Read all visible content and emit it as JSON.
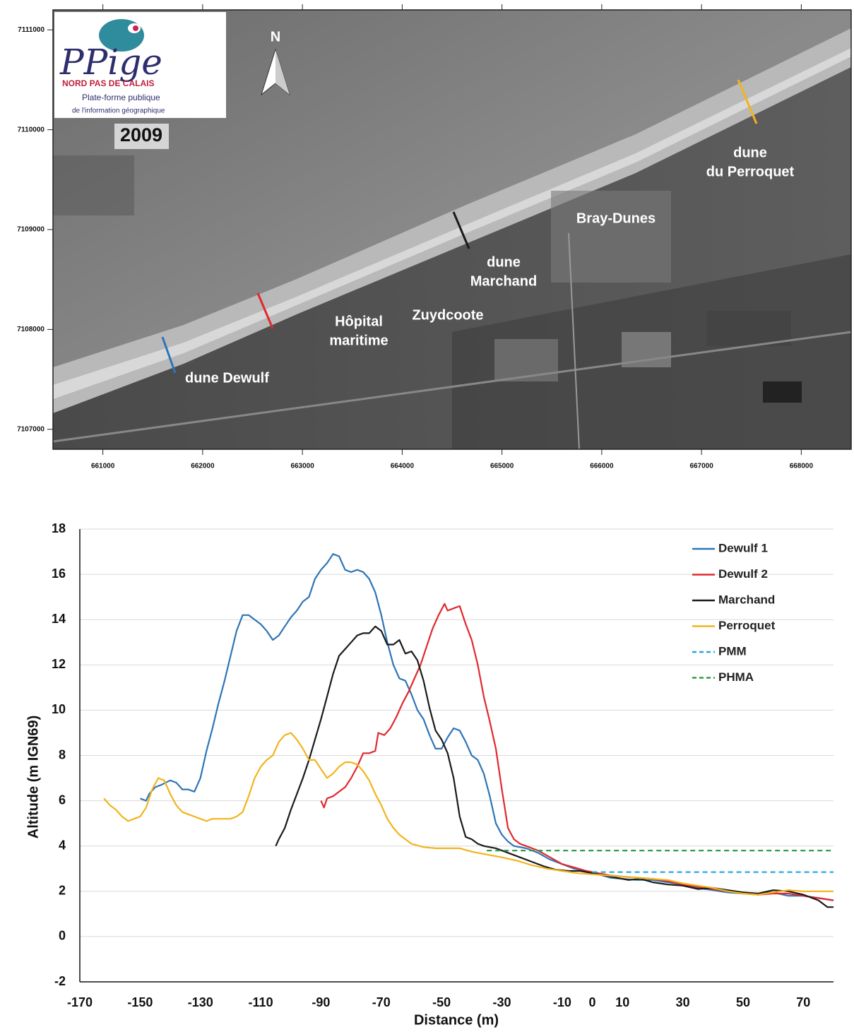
{
  "chart_data": [
    {
      "type": "map",
      "xlim": [
        660500,
        668500
      ],
      "ylim": [
        7106800,
        7111200
      ],
      "xticks": [
        661000,
        662000,
        663000,
        664000,
        665000,
        666000,
        667000,
        668000
      ],
      "yticks": [
        7107000,
        7108000,
        7109000,
        7110000,
        7111000
      ],
      "north": "N",
      "logo": {
        "title": "PPige",
        "region": "NORD PAS DE CALAIS",
        "line1": "Plate-forme publique",
        "line2": "de l'information géographique",
        "year": "2009"
      },
      "annotations": [
        [
          "dune Dewulf"
        ],
        [
          "Hôpital",
          "maritime"
        ],
        [
          "Zuydcoote"
        ],
        [
          "dune",
          "Marchand"
        ],
        [
          "Bray-Dunes"
        ],
        [
          "dune",
          "du Perroquet"
        ]
      ]
    },
    {
      "type": "line",
      "xlabel": "Distance (m)",
      "ylabel": "Altitude (m IGN69)",
      "xlim": [
        -170,
        80
      ],
      "ylim": [
        -2,
        18
      ],
      "xticks": [
        -170,
        -150,
        -130,
        -110,
        -90,
        -70,
        -50,
        -30,
        -10,
        0,
        10,
        30,
        50,
        70
      ],
      "yticks": [
        -2,
        0,
        2,
        4,
        6,
        8,
        10,
        12,
        14,
        16,
        18
      ],
      "grid": true,
      "legend": "upper right",
      "series": [
        {
          "name": "Dewulf 1",
          "color": "#2e75b6",
          "x": [
            -150,
            -148,
            -147,
            -145,
            -143,
            -140,
            -138,
            -136,
            -134,
            -132,
            -130,
            -128,
            -126,
            -124,
            -122,
            -120,
            -118,
            -116,
            -114,
            -112,
            -110,
            -108,
            -106,
            -104,
            -102,
            -100,
            -98,
            -96,
            -94,
            -92,
            -90,
            -88,
            -86,
            -84,
            -82,
            -80,
            -78,
            -76,
            -74,
            -72,
            -70,
            -68,
            -66,
            -64,
            -62,
            -60,
            -58,
            -56,
            -54,
            -52,
            -50,
            -48,
            -46,
            -44,
            -42,
            -40,
            -38,
            -36,
            -34,
            -32,
            -30,
            -28,
            -26,
            -22,
            -18,
            -14,
            -10,
            -6,
            -2,
            2,
            6,
            10,
            15,
            20,
            25,
            30,
            35,
            40,
            45,
            50,
            55,
            60,
            65,
            70,
            75,
            80
          ],
          "values": [
            6.1,
            6.0,
            6.3,
            6.6,
            6.7,
            6.9,
            6.8,
            6.5,
            6.5,
            6.4,
            7.0,
            8.2,
            9.2,
            10.3,
            11.3,
            12.4,
            13.5,
            14.2,
            14.2,
            14.0,
            13.8,
            13.5,
            13.1,
            13.3,
            13.7,
            14.1,
            14.4,
            14.8,
            15.0,
            15.8,
            16.2,
            16.5,
            16.9,
            16.8,
            16.2,
            16.1,
            16.2,
            16.1,
            15.8,
            15.2,
            14.2,
            13.0,
            12.0,
            11.4,
            11.3,
            10.7,
            10.0,
            9.6,
            8.9,
            8.3,
            8.3,
            8.8,
            9.2,
            9.1,
            8.6,
            8.0,
            7.8,
            7.2,
            6.2,
            5.0,
            4.5,
            4.2,
            4.0,
            3.9,
            3.7,
            3.4,
            3.2,
            3.0,
            2.9,
            2.75,
            2.6,
            2.55,
            2.5,
            2.5,
            2.4,
            2.3,
            2.15,
            2.05,
            1.95,
            1.9,
            1.9,
            1.95,
            1.8,
            1.8,
            1.7,
            1.6
          ]
        },
        {
          "name": "Dewulf 2",
          "color": "#e0282e",
          "x": [
            -90,
            -89,
            -88,
            -86,
            -84,
            -82,
            -80,
            -78,
            -76,
            -74,
            -72,
            -71,
            -69,
            -67,
            -65,
            -63,
            -61,
            -59,
            -57,
            -55,
            -53,
            -51,
            -49,
            -48,
            -46,
            -44,
            -42,
            -40,
            -38,
            -36,
            -34,
            -32,
            -30,
            -28,
            -26,
            -24,
            -22,
            -18,
            -14,
            -10,
            -6,
            -2,
            2,
            6,
            10,
            15,
            20,
            25,
            30,
            35,
            40,
            45,
            50,
            55,
            60,
            65,
            70,
            75,
            80
          ],
          "values": [
            6.0,
            5.7,
            6.1,
            6.2,
            6.4,
            6.6,
            7.0,
            7.5,
            8.1,
            8.1,
            8.2,
            9.0,
            8.9,
            9.2,
            9.7,
            10.3,
            10.8,
            11.4,
            12.0,
            12.8,
            13.6,
            14.2,
            14.7,
            14.4,
            14.5,
            14.6,
            13.8,
            13.1,
            12.0,
            10.6,
            9.5,
            8.3,
            6.5,
            4.8,
            4.3,
            4.1,
            4.0,
            3.8,
            3.5,
            3.2,
            3.05,
            2.9,
            2.8,
            2.7,
            2.65,
            2.6,
            2.55,
            2.45,
            2.3,
            2.2,
            2.1,
            2.0,
            1.9,
            1.85,
            1.9,
            1.9,
            1.8,
            1.7,
            1.6
          ]
        },
        {
          "name": "Marchand",
          "color": "#1a1a1a",
          "x": [
            -105,
            -104,
            -102,
            -100,
            -98,
            -96,
            -94,
            -92,
            -90,
            -88,
            -86,
            -84,
            -82,
            -80,
            -78,
            -76,
            -74,
            -72,
            -70,
            -68,
            -66,
            -64,
            -62,
            -60,
            -58,
            -56,
            -54,
            -52,
            -50,
            -48,
            -46,
            -44,
            -42,
            -40,
            -38,
            -36,
            -32,
            -28,
            -24,
            -20,
            -16,
            -12,
            -8,
            -4,
            0,
            4,
            8,
            12,
            16,
            20,
            25,
            30,
            35,
            40,
            45,
            50,
            55,
            60,
            65,
            70,
            75,
            78,
            80
          ],
          "values": [
            4.0,
            4.3,
            4.8,
            5.6,
            6.3,
            7.0,
            7.8,
            8.7,
            9.6,
            10.6,
            11.6,
            12.4,
            12.7,
            13.0,
            13.3,
            13.4,
            13.4,
            13.7,
            13.5,
            12.9,
            12.9,
            13.1,
            12.5,
            12.6,
            12.2,
            11.3,
            10.1,
            9.1,
            8.7,
            8.1,
            7.0,
            5.3,
            4.4,
            4.3,
            4.1,
            4.0,
            3.9,
            3.7,
            3.5,
            3.3,
            3.1,
            2.95,
            2.9,
            2.9,
            2.8,
            2.7,
            2.6,
            2.5,
            2.55,
            2.4,
            2.3,
            2.25,
            2.1,
            2.15,
            2.05,
            1.95,
            1.9,
            2.05,
            2.0,
            1.85,
            1.6,
            1.3,
            1.3
          ]
        },
        {
          "name": "Perroquet",
          "color": "#f2b41c",
          "x": [
            -162,
            -160,
            -158,
            -156,
            -154,
            -152,
            -150,
            -148,
            -146,
            -144,
            -142,
            -140,
            -138,
            -136,
            -134,
            -132,
            -130,
            -128,
            -126,
            -124,
            -122,
            -120,
            -118,
            -116,
            -114,
            -112,
            -110,
            -108,
            -106,
            -104,
            -102,
            -100,
            -98,
            -96,
            -94,
            -92,
            -90,
            -88,
            -86,
            -84,
            -82,
            -80,
            -78,
            -76,
            -74,
            -72,
            -70,
            -68,
            -66,
            -64,
            -62,
            -60,
            -56,
            -52,
            -48,
            -44,
            -40,
            -36,
            -30,
            -25,
            -20,
            -15,
            -10,
            -5,
            0,
            5,
            10,
            15,
            20,
            25,
            30,
            35,
            40,
            45,
            50,
            55,
            60,
            65,
            70,
            75,
            80
          ],
          "values": [
            6.1,
            5.8,
            5.6,
            5.3,
            5.1,
            5.2,
            5.3,
            5.7,
            6.5,
            7.0,
            6.9,
            6.3,
            5.8,
            5.5,
            5.4,
            5.3,
            5.2,
            5.1,
            5.2,
            5.2,
            5.2,
            5.2,
            5.3,
            5.5,
            6.2,
            7.0,
            7.5,
            7.8,
            8.0,
            8.6,
            8.9,
            9.0,
            8.7,
            8.3,
            7.8,
            7.8,
            7.4,
            7.0,
            7.2,
            7.5,
            7.7,
            7.7,
            7.6,
            7.3,
            6.9,
            6.3,
            5.8,
            5.2,
            4.8,
            4.5,
            4.3,
            4.1,
            3.95,
            3.9,
            3.9,
            3.9,
            3.75,
            3.65,
            3.5,
            3.35,
            3.15,
            3.0,
            2.9,
            2.8,
            2.75,
            2.7,
            2.65,
            2.6,
            2.55,
            2.5,
            2.35,
            2.25,
            2.15,
            2.0,
            1.9,
            1.85,
            1.95,
            2.05,
            2.0,
            2.0,
            2.0
          ]
        },
        {
          "name": "PMM",
          "color": "#29a8e0",
          "dashed": true,
          "x": [
            0,
            80
          ],
          "values": [
            2.85,
            2.85
          ]
        },
        {
          "name": "PHMA",
          "color": "#2e9e48",
          "dashed": true,
          "x": [
            -35,
            80
          ],
          "values": [
            3.8,
            3.8
          ]
        }
      ]
    }
  ]
}
